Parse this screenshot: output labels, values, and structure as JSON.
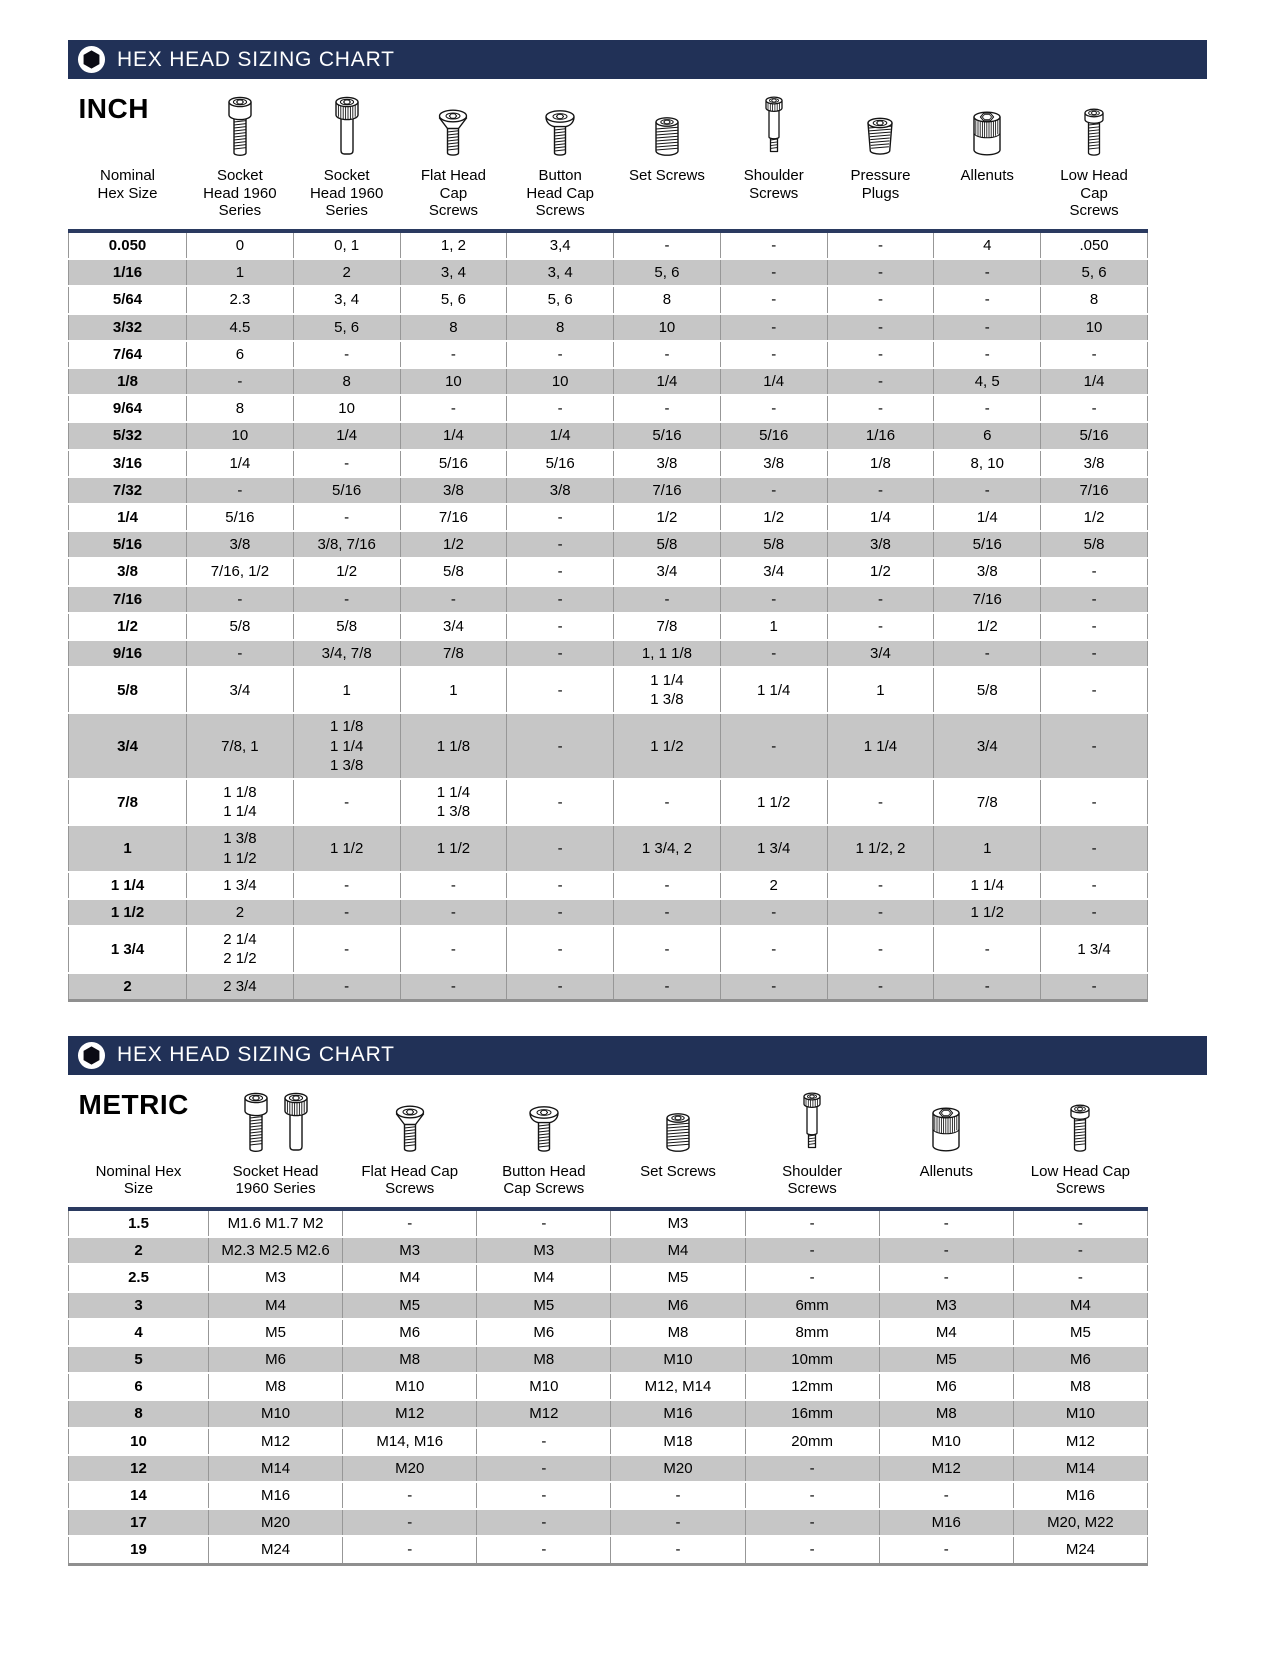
{
  "colors": {
    "header_bar": "#213157",
    "table_top_border": "#2a3a60",
    "table_bottom_border": "#8f8f8f",
    "row_alt": "#c6c6c6"
  },
  "sections": [
    {
      "bar_title": "HEX HEAD SIZING CHART",
      "unit_label": "INCH",
      "columns": [
        {
          "label": "Nominal\nHex Size",
          "icons": []
        },
        {
          "label": "Socket\nHead 1960\nSeries",
          "icons": [
            "socket-head-screw-icon"
          ]
        },
        {
          "label": "Socket\nHead 1960\nSeries",
          "icons": [
            "socket-head-knurled-screw-icon"
          ]
        },
        {
          "label": "Flat Head\nCap\nScrews",
          "icons": [
            "flat-head-cap-screw-icon"
          ]
        },
        {
          "label": "Button\nHead Cap\nScrews",
          "icons": [
            "button-head-cap-screw-icon"
          ]
        },
        {
          "label": "Set Screws",
          "icons": [
            "set-screw-icon"
          ]
        },
        {
          "label": "Shoulder\nScrews",
          "icons": [
            "shoulder-screw-icon"
          ]
        },
        {
          "label": "Pressure\nPlugs",
          "icons": [
            "pressure-plug-icon"
          ]
        },
        {
          "label": "Allenuts",
          "icons": [
            "allenut-icon"
          ]
        },
        {
          "label": "Low Head\nCap\nScrews",
          "icons": [
            "low-head-cap-screw-icon"
          ]
        }
      ],
      "rows": [
        [
          "0.050",
          "0",
          "0, 1",
          "1, 2",
          "3,4",
          "-",
          "-",
          "-",
          "4",
          ".050"
        ],
        [
          "1/16",
          "1",
          "2",
          "3, 4",
          "3, 4",
          "5, 6",
          "-",
          "-",
          "-",
          "5, 6"
        ],
        [
          "5/64",
          "2.3",
          "3, 4",
          "5, 6",
          "5, 6",
          "8",
          "-",
          "-",
          "-",
          "8"
        ],
        [
          "3/32",
          "4.5",
          "5, 6",
          "8",
          "8",
          "10",
          "-",
          "-",
          "-",
          "10"
        ],
        [
          "7/64",
          "6",
          "-",
          "-",
          "-",
          "-",
          "-",
          "-",
          "-",
          "-"
        ],
        [
          "1/8",
          "-",
          "8",
          "10",
          "10",
          "1/4",
          "1/4",
          "-",
          "4, 5",
          "1/4"
        ],
        [
          "9/64",
          "8",
          "10",
          "-",
          "-",
          "-",
          "-",
          "-",
          "-",
          "-"
        ],
        [
          "5/32",
          "10",
          "1/4",
          "1/4",
          "1/4",
          "5/16",
          "5/16",
          "1/16",
          "6",
          "5/16"
        ],
        [
          "3/16",
          "1/4",
          "-",
          "5/16",
          "5/16",
          "3/8",
          "3/8",
          "1/8",
          "8, 10",
          "3/8"
        ],
        [
          "7/32",
          "-",
          "5/16",
          "3/8",
          "3/8",
          "7/16",
          "-",
          "-",
          "-",
          "7/16"
        ],
        [
          "1/4",
          "5/16",
          "-",
          "7/16",
          "-",
          "1/2",
          "1/2",
          "1/4",
          "1/4",
          "1/2"
        ],
        [
          "5/16",
          "3/8",
          "3/8, 7/16",
          "1/2",
          "-",
          "5/8",
          "5/8",
          "3/8",
          "5/16",
          "5/8"
        ],
        [
          "3/8",
          "7/16, 1/2",
          "1/2",
          "5/8",
          "-",
          "3/4",
          "3/4",
          "1/2",
          "3/8",
          "-"
        ],
        [
          "7/16",
          "-",
          "-",
          "-",
          "-",
          "-",
          "-",
          "-",
          "7/16",
          "-"
        ],
        [
          "1/2",
          "5/8",
          "5/8",
          "3/4",
          "-",
          "7/8",
          "1",
          "-",
          "1/2",
          "-"
        ],
        [
          "9/16",
          "-",
          "3/4, 7/8",
          "7/8",
          "-",
          "1, 1 1/8",
          "-",
          "3/4",
          "-",
          "-"
        ],
        [
          "5/8",
          "3/4",
          "1",
          "1",
          "-",
          "1 1/4\n1 3/8",
          "1 1/4",
          "1",
          "5/8",
          "-"
        ],
        [
          "3/4",
          "7/8, 1",
          "1 1/8\n1 1/4\n1 3/8",
          "1 1/8",
          "-",
          "1 1/2",
          "-",
          "1 1/4",
          "3/4",
          "-"
        ],
        [
          "7/8",
          "1 1/8\n1 1/4",
          "-",
          "1 1/4\n1 3/8",
          "-",
          "-",
          "1 1/2",
          "-",
          "7/8",
          "-"
        ],
        [
          "1",
          "1 3/8\n1 1/2",
          "1 1/2",
          "1 1/2",
          "-",
          "1 3/4, 2",
          "1 3/4",
          "1 1/2, 2",
          "1",
          "-"
        ],
        [
          "1 1/4",
          "1 3/4",
          "-",
          "-",
          "-",
          "-",
          "2",
          "-",
          "1 1/4",
          "-"
        ],
        [
          "1 1/2",
          "2",
          "-",
          "-",
          "-",
          "-",
          "-",
          "-",
          "1 1/2",
          "-"
        ],
        [
          "1 3/4",
          "2 1/4\n2 1/2",
          "-",
          "-",
          "-",
          "-",
          "-",
          "-",
          "-",
          "1 3/4"
        ],
        [
          "2",
          "2 3/4",
          "-",
          "-",
          "-",
          "-",
          "-",
          "-",
          "-",
          "-"
        ]
      ]
    },
    {
      "bar_title": "HEX HEAD SIZING CHART",
      "unit_label": "METRIC",
      "columns": [
        {
          "label": "Nominal Hex\nSize",
          "icons": []
        },
        {
          "label": "Socket Head\n1960 Series",
          "icons": [
            "socket-head-screw-icon",
            "socket-head-knurled-screw-icon"
          ]
        },
        {
          "label": "Flat Head Cap\nScrews",
          "icons": [
            "flat-head-cap-screw-icon"
          ]
        },
        {
          "label": "Button Head\nCap Screws",
          "icons": [
            "button-head-cap-screw-icon"
          ]
        },
        {
          "label": "Set Screws",
          "icons": [
            "set-screw-icon"
          ]
        },
        {
          "label": "Shoulder\nScrews",
          "icons": [
            "shoulder-screw-icon"
          ]
        },
        {
          "label": "Allenuts",
          "icons": [
            "allenut-icon"
          ]
        },
        {
          "label": "Low Head Cap\nScrews",
          "icons": [
            "low-head-cap-screw-icon"
          ]
        }
      ],
      "rows": [
        [
          "1.5",
          "M1.6 M1.7 M2",
          "-",
          "-",
          "M3",
          "-",
          "-",
          "-"
        ],
        [
          "2",
          "M2.3 M2.5 M2.6",
          "M3",
          "M3",
          "M4",
          "-",
          "-",
          "-"
        ],
        [
          "2.5",
          "M3",
          "M4",
          "M4",
          "M5",
          "-",
          "-",
          "-"
        ],
        [
          "3",
          "M4",
          "M5",
          "M5",
          "M6",
          "6mm",
          "M3",
          "M4"
        ],
        [
          "4",
          "M5",
          "M6",
          "M6",
          "M8",
          "8mm",
          "M4",
          "M5"
        ],
        [
          "5",
          "M6",
          "M8",
          "M8",
          "M10",
          "10mm",
          "M5",
          "M6"
        ],
        [
          "6",
          "M8",
          "M10",
          "M10",
          "M12, M14",
          "12mm",
          "M6",
          "M8"
        ],
        [
          "8",
          "M10",
          "M12",
          "M12",
          "M16",
          "16mm",
          "M8",
          "M10"
        ],
        [
          "10",
          "M12",
          "M14, M16",
          "-",
          "M18",
          "20mm",
          "M10",
          "M12"
        ],
        [
          "12",
          "M14",
          "M20",
          "-",
          "M20",
          "-",
          "M12",
          "M14"
        ],
        [
          "14",
          "M16",
          "-",
          "-",
          "-",
          "-",
          "-",
          "M16"
        ],
        [
          "17",
          "M20",
          "-",
          "-",
          "-",
          "-",
          "M16",
          "M20, M22"
        ],
        [
          "19",
          "M24",
          "-",
          "-",
          "-",
          "-",
          "-",
          "M24"
        ]
      ]
    }
  ]
}
